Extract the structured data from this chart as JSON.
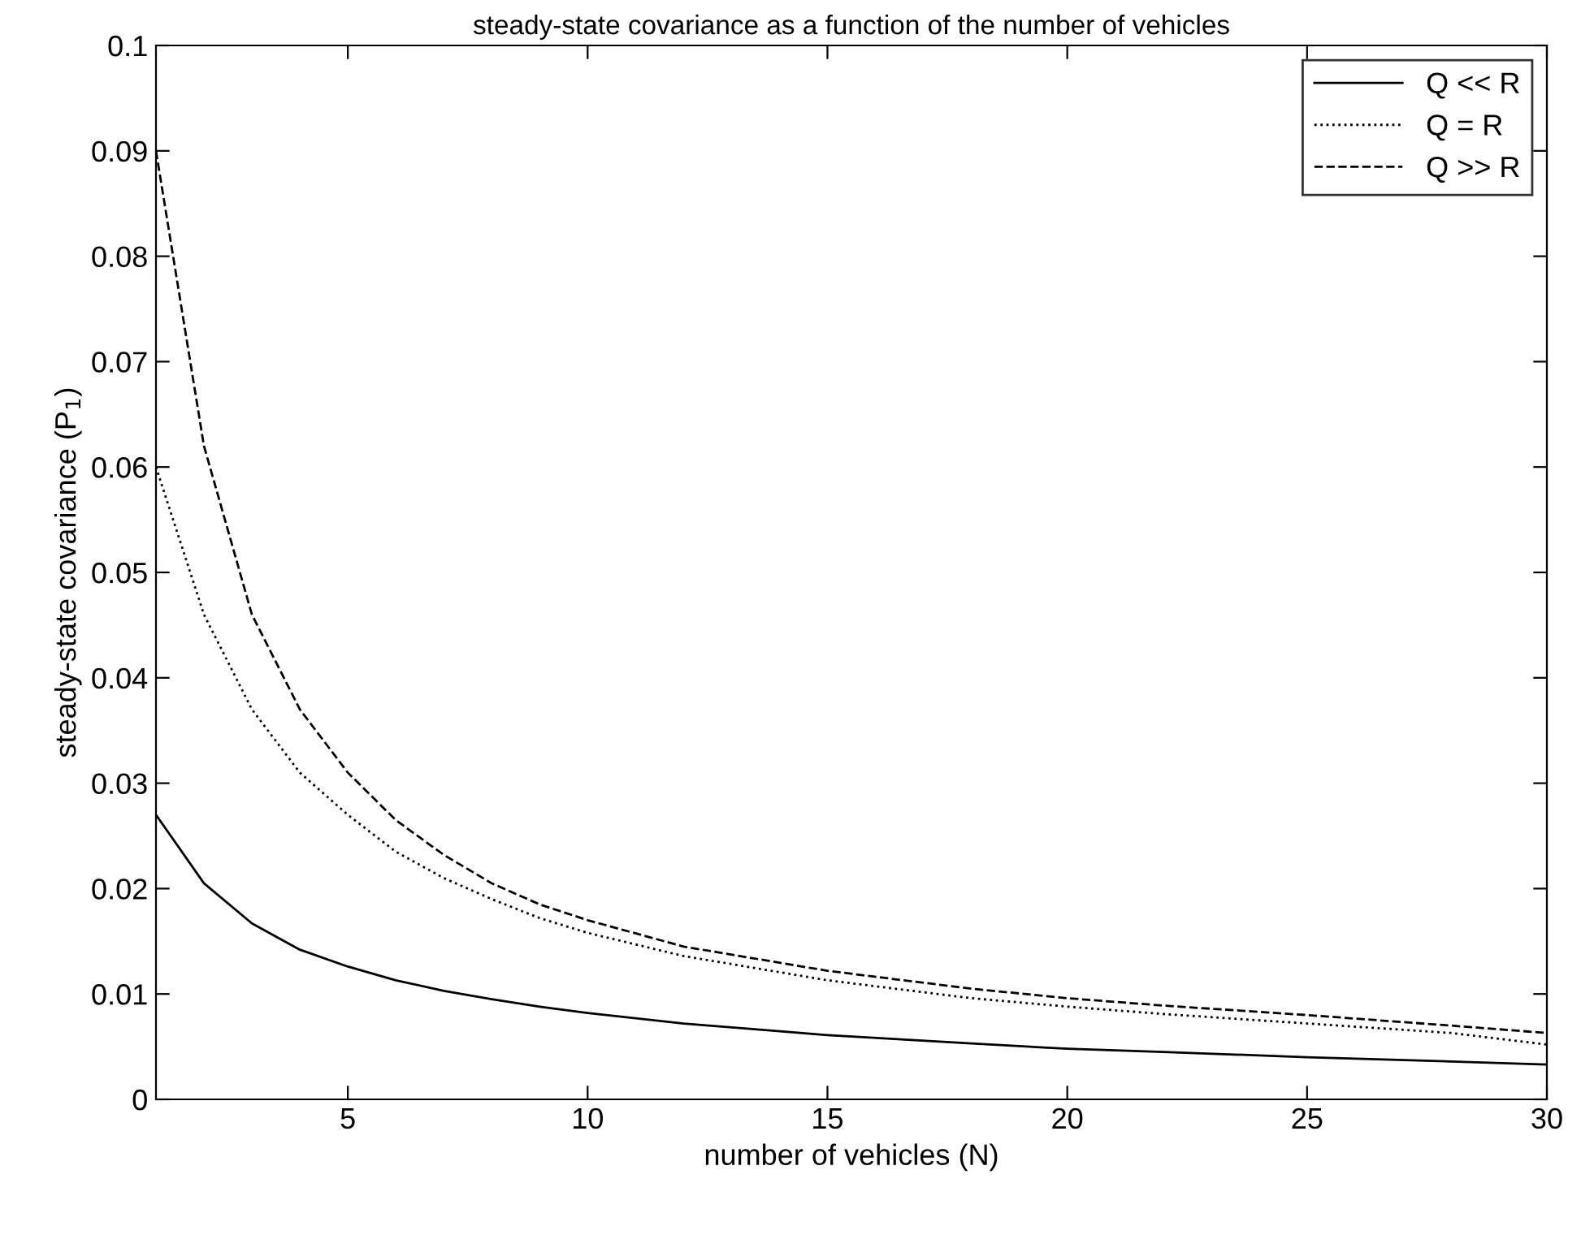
{
  "chart_data": {
    "type": "line",
    "title": "steady-state covariance as a function of the number of vehicles",
    "xlabel": "number of vehicles (N)",
    "ylabel": "steady-state covariance (P$_{1}$)",
    "x": [
      1,
      2,
      3,
      4,
      5,
      6,
      7,
      8,
      9,
      10,
      12,
      15,
      18,
      20,
      22,
      25,
      28,
      30
    ],
    "series": [
      {
        "name": "Q << R",
        "color": "#000000",
        "line_style": "solid",
        "values": [
          0.027,
          0.0205,
          0.0167,
          0.0142,
          0.0126,
          0.0113,
          0.0103,
          0.0095,
          0.0088,
          0.0082,
          0.0072,
          0.0061,
          0.0053,
          0.0048,
          0.0045,
          0.004,
          0.0036,
          0.0033
        ]
      },
      {
        "name": "Q = R",
        "color": "#000000",
        "line_style": "dotted",
        "values": [
          0.06,
          0.046,
          0.037,
          0.031,
          0.027,
          0.0235,
          0.021,
          0.019,
          0.0172,
          0.0158,
          0.0136,
          0.0113,
          0.0096,
          0.0088,
          0.0081,
          0.0072,
          0.0063,
          0.0052
        ]
      },
      {
        "name": "Q >> R",
        "color": "#000000",
        "line_style": "dashed",
        "values": [
          0.09,
          0.062,
          0.046,
          0.037,
          0.031,
          0.0265,
          0.0232,
          0.0205,
          0.0185,
          0.017,
          0.0145,
          0.0122,
          0.0105,
          0.0096,
          0.0089,
          0.008,
          0.007,
          0.0063
        ]
      }
    ],
    "xlim": [
      1,
      30
    ],
    "xticks": [
      5,
      10,
      15,
      20,
      25,
      30
    ],
    "ylim": [
      0,
      0.1
    ],
    "yticks": [
      0,
      0.01,
      0.02,
      0.03,
      0.04,
      0.05,
      0.06,
      0.07,
      0.08,
      0.09,
      0.1
    ],
    "grid": false,
    "legend": "top right",
    "marker": "none"
  }
}
